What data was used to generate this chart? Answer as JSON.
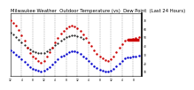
{
  "title": "Milwaukee Weather  Outdoor Temperature (vs)  Dew Point  (Last 24 Hours)",
  "title_fontsize": 3.8,
  "background_color": "#ffffff",
  "grid_color": "#888888",
  "y_ticks": [
    10,
    20,
    30,
    40,
    50,
    60,
    70
  ],
  "ylim": [
    5,
    78
  ],
  "xlim": [
    0,
    47
  ],
  "temp_color": "#cc0000",
  "dew_color": "#0000cc",
  "avg_color": "#000000",
  "current_temp_color": "#cc0000",
  "temp_x": [
    0,
    1,
    2,
    3,
    4,
    5,
    6,
    7,
    8,
    9,
    10,
    11,
    12,
    13,
    14,
    15,
    16,
    17,
    18,
    19,
    20,
    21,
    22,
    23,
    24,
    25,
    26,
    27,
    28,
    29,
    30,
    31,
    32,
    33,
    34,
    35,
    36,
    37,
    38,
    39,
    40,
    41,
    42,
    43,
    44,
    45,
    46
  ],
  "temp_y": [
    70,
    67,
    63,
    58,
    52,
    46,
    38,
    32,
    28,
    25,
    22,
    20,
    22,
    27,
    33,
    38,
    44,
    49,
    54,
    57,
    60,
    62,
    63,
    62,
    60,
    57,
    53,
    49,
    44,
    40,
    35,
    31,
    28,
    25,
    23,
    22,
    24,
    28,
    33,
    38,
    42,
    46,
    47,
    47,
    48,
    49,
    50
  ],
  "dew_x": [
    0,
    1,
    2,
    3,
    4,
    5,
    6,
    7,
    8,
    9,
    10,
    11,
    12,
    13,
    14,
    15,
    16,
    17,
    18,
    19,
    20,
    21,
    22,
    23,
    24,
    25,
    26,
    27,
    28,
    29,
    30,
    31,
    32,
    33,
    34,
    35,
    36,
    37,
    38,
    39,
    40,
    41,
    42,
    43,
    44,
    45,
    46
  ],
  "dew_y": [
    35,
    33,
    30,
    27,
    24,
    21,
    18,
    15,
    13,
    12,
    11,
    10,
    11,
    13,
    15,
    18,
    21,
    24,
    27,
    29,
    31,
    33,
    34,
    34,
    33,
    31,
    28,
    25,
    22,
    19,
    16,
    14,
    12,
    11,
    10,
    10,
    11,
    13,
    16,
    19,
    22,
    25,
    26,
    26,
    27,
    28,
    29
  ],
  "avg_x": [
    0,
    1,
    2,
    3,
    4,
    5,
    6,
    7,
    8,
    9,
    10,
    11,
    12,
    13,
    14,
    15,
    16,
    17,
    18,
    19,
    20,
    21,
    22,
    23,
    24,
    25,
    26
  ],
  "avg_y": [
    55,
    53,
    50,
    47,
    44,
    41,
    38,
    36,
    34,
    33,
    32,
    32,
    32,
    34,
    36,
    38,
    41,
    43,
    46,
    48,
    50,
    51,
    52,
    52,
    51,
    50,
    48
  ],
  "current_x_start": 42,
  "current_x_end": 46,
  "current_y": 47,
  "xtick_positions": [
    0,
    4,
    8,
    12,
    16,
    20,
    24,
    28,
    32,
    36,
    40,
    44
  ],
  "xtick_labels": [
    "12",
    "4",
    "8",
    "12",
    "4",
    "8",
    "12",
    "4",
    "8",
    "12",
    "4",
    "8"
  ],
  "marker_size": 1.5,
  "vline_positions": [
    4,
    8,
    12,
    16,
    20,
    24,
    28,
    32,
    36,
    40,
    44
  ]
}
